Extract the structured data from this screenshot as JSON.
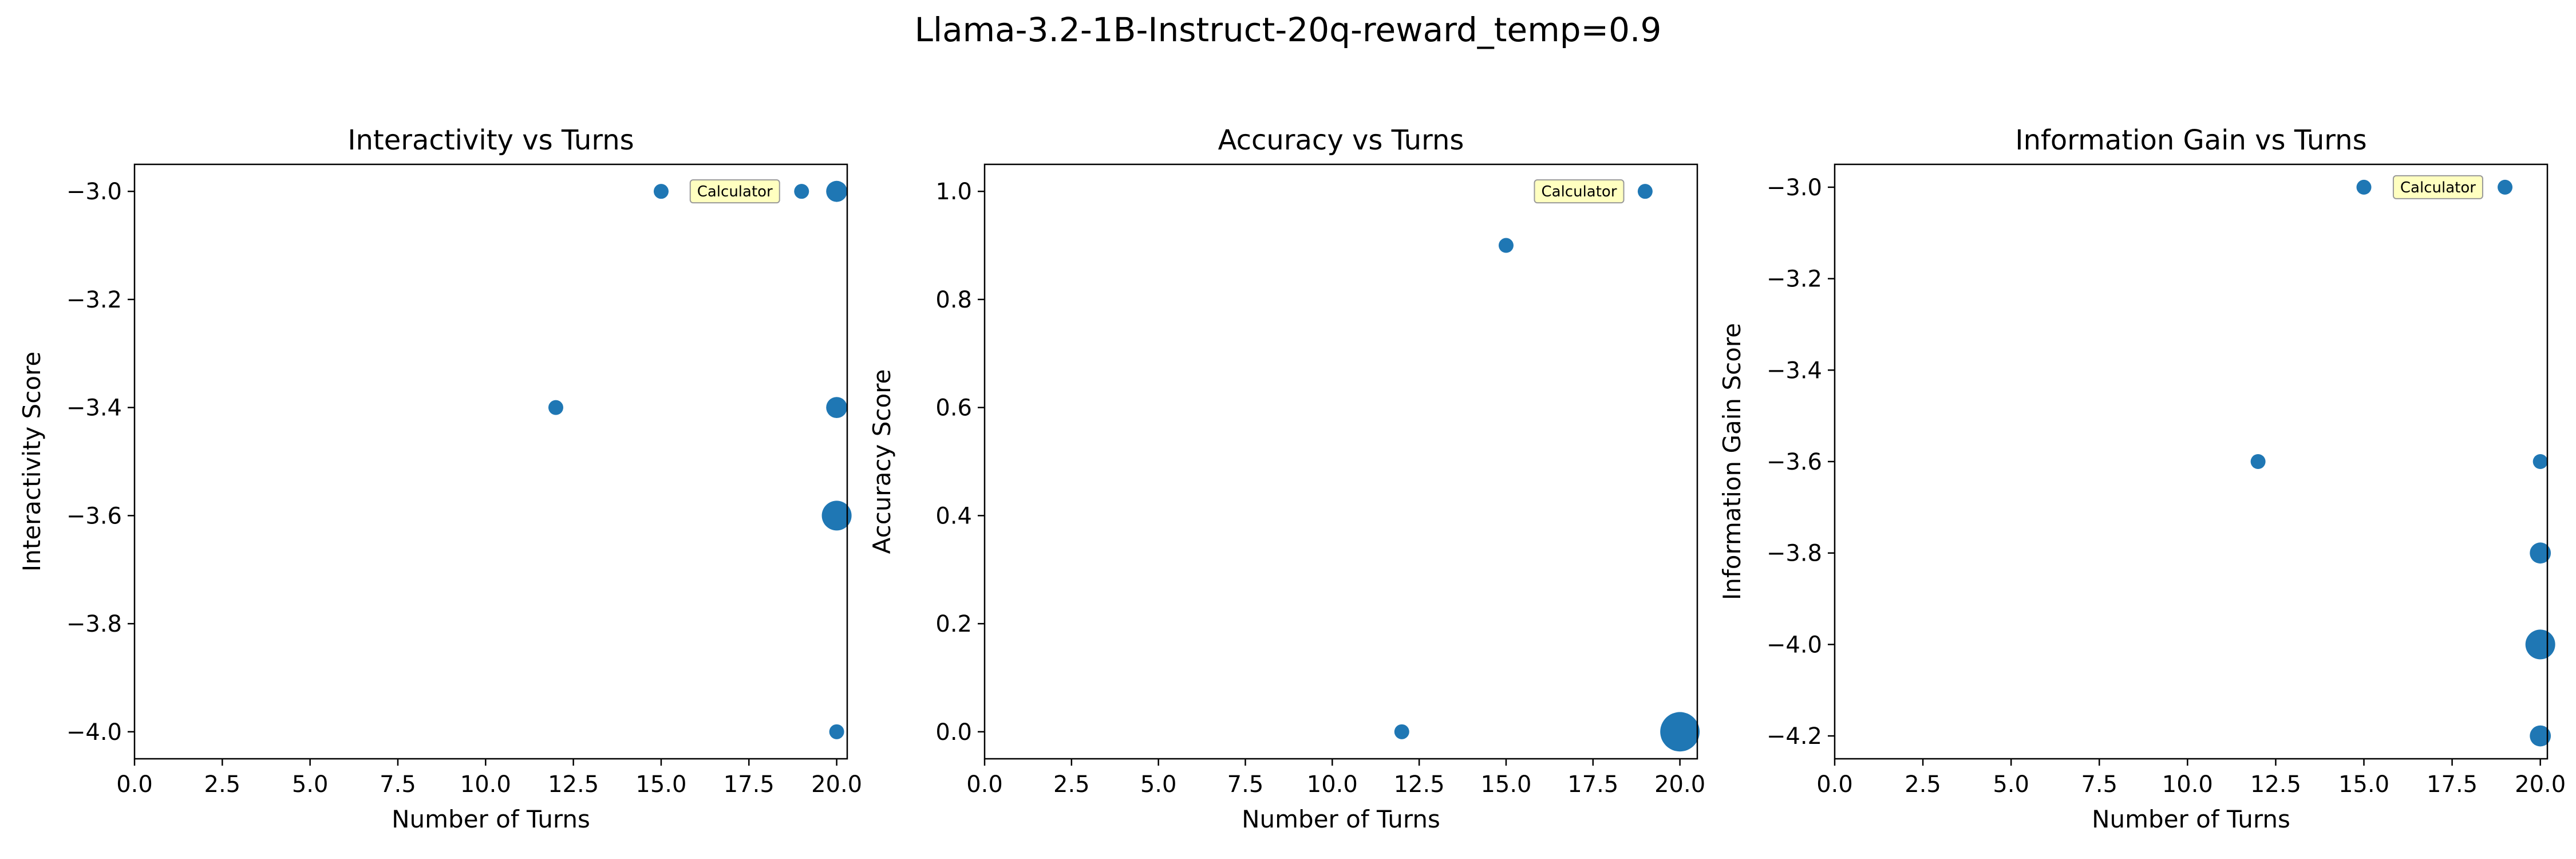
{
  "figure_title": "Llama-3.2-1B-Instruct-20q-reward_temp=0.9",
  "marker_color": "#1f77b4",
  "annotation_bg": "#ffffc0",
  "chart_data": [
    {
      "type": "scatter",
      "title": "Interactivity vs Turns",
      "xlabel": "Number of Turns",
      "ylabel": "Interactivity Score",
      "xlim": [
        0,
        20.3
      ],
      "ylim": [
        -4.05,
        -2.95
      ],
      "xticks": [
        0.0,
        2.5,
        5.0,
        7.5,
        10.0,
        12.5,
        15.0,
        17.5,
        20.0
      ],
      "xtick_labels": [
        "0.0",
        "2.5",
        "5.0",
        "7.5",
        "10.0",
        "12.5",
        "15.0",
        "17.5",
        "20.0"
      ],
      "yticks": [
        -3.0,
        -3.2,
        -3.4,
        -3.6,
        -3.8,
        -4.0
      ],
      "ytick_labels": [
        "−3.0",
        "−3.2",
        "−3.4",
        "−3.6",
        "−3.8",
        "−4.0"
      ],
      "points": [
        {
          "x": 15,
          "y": -3.0,
          "count": 1
        },
        {
          "x": 19,
          "y": -3.0,
          "count": 1
        },
        {
          "x": 20,
          "y": -3.0,
          "count": 2
        },
        {
          "x": 12,
          "y": -3.4,
          "count": 1
        },
        {
          "x": 20,
          "y": -3.4,
          "count": 2
        },
        {
          "x": 20,
          "y": -3.6,
          "count": 4
        },
        {
          "x": 20,
          "y": -4.0,
          "count": 1
        }
      ],
      "annotation": {
        "text": "Calculator",
        "x": 17.1,
        "y": -3.0
      }
    },
    {
      "type": "scatter",
      "title": "Accuracy vs Turns",
      "xlabel": "Number of Turns",
      "ylabel": "Accuracy Score",
      "xlim": [
        0,
        20.5
      ],
      "ylim": [
        -0.05,
        1.05
      ],
      "xticks": [
        0.0,
        2.5,
        5.0,
        7.5,
        10.0,
        12.5,
        15.0,
        17.5,
        20.0
      ],
      "xtick_labels": [
        "0.0",
        "2.5",
        "5.0",
        "7.5",
        "10.0",
        "12.5",
        "15.0",
        "17.5",
        "20.0"
      ],
      "yticks": [
        0.0,
        0.2,
        0.4,
        0.6,
        0.8,
        1.0
      ],
      "ytick_labels": [
        "0.0",
        "0.2",
        "0.4",
        "0.6",
        "0.8",
        "1.0"
      ],
      "points": [
        {
          "x": 19,
          "y": 1.0,
          "count": 1
        },
        {
          "x": 15,
          "y": 0.9,
          "count": 1
        },
        {
          "x": 12,
          "y": 0.0,
          "count": 1
        },
        {
          "x": 20,
          "y": 0.0,
          "count": 7
        }
      ],
      "annotation": {
        "text": "Calculator",
        "x": 17.1,
        "y": 1.0
      }
    },
    {
      "type": "scatter",
      "title": "Information Gain vs Turns",
      "xlabel": "Number of Turns",
      "ylabel": "Information Gain Score",
      "xlim": [
        0,
        20.2
      ],
      "ylim": [
        -4.25,
        -2.95
      ],
      "xticks": [
        0.0,
        2.5,
        5.0,
        7.5,
        10.0,
        12.5,
        15.0,
        17.5,
        20.0
      ],
      "xtick_labels": [
        "0.0",
        "2.5",
        "5.0",
        "7.5",
        "10.0",
        "12.5",
        "15.0",
        "17.5",
        "20.0"
      ],
      "yticks": [
        -3.0,
        -3.2,
        -3.4,
        -3.6,
        -3.8,
        -4.0,
        -4.2
      ],
      "ytick_labels": [
        "−3.0",
        "−3.2",
        "−3.4",
        "−3.6",
        "−3.8",
        "−4.0",
        "−4.2"
      ],
      "points": [
        {
          "x": 15,
          "y": -3.0,
          "count": 1
        },
        {
          "x": 19,
          "y": -3.0,
          "count": 1
        },
        {
          "x": 12,
          "y": -3.6,
          "count": 1
        },
        {
          "x": 20,
          "y": -3.6,
          "count": 1
        },
        {
          "x": 20,
          "y": -3.8,
          "count": 2
        },
        {
          "x": 20,
          "y": -4.0,
          "count": 4
        },
        {
          "x": 20,
          "y": -4.2,
          "count": 2
        }
      ],
      "annotation": {
        "text": "Calculator",
        "x": 17.1,
        "y": -3.0
      }
    }
  ]
}
